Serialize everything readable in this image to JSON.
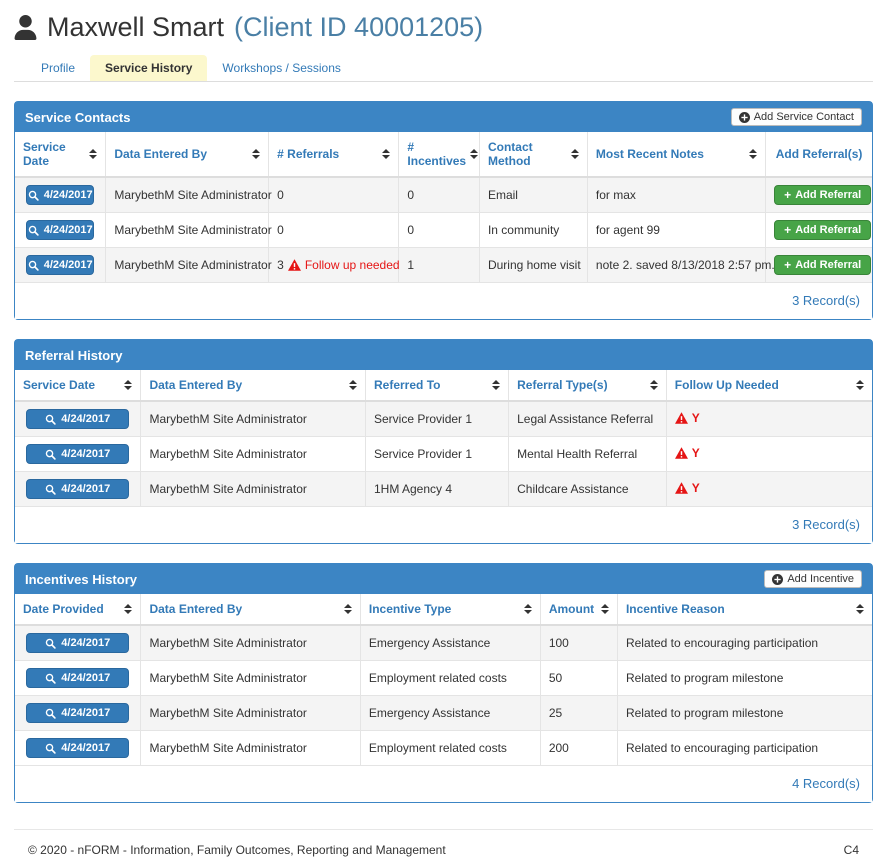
{
  "header": {
    "client_name": "Maxwell Smart",
    "client_id": "(Client ID 40001205)",
    "tabs": [
      {
        "label": "Profile",
        "active": false
      },
      {
        "label": "Service History",
        "active": true
      },
      {
        "label": "Workshops / Sessions",
        "active": false
      }
    ]
  },
  "colors": {
    "accent": "#3c85c4",
    "link": "#337ab7",
    "danger": "#e51515",
    "success": "#47a447",
    "tab_active_bg": "#fcf8cd",
    "stripe": "#f4f4f4",
    "border": "#dddddd",
    "text": "#333333"
  },
  "icons": {
    "title_icon": "user-icon",
    "date_button_icon": "search-icon",
    "warning_icon": "warning-triangle-icon",
    "add_button_icon": "plus-circle-icon"
  },
  "tables": [
    {
      "title": "Service Contacts",
      "header_button": "Add Service Contact",
      "columns": [
        {
          "label": "Service Date",
          "sortable": true
        },
        {
          "label": "Data Entered By",
          "sortable": true
        },
        {
          "label": "# Referrals",
          "sortable": true
        },
        {
          "label": "# Incentives",
          "sortable": true
        },
        {
          "label": "Contact Method",
          "sortable": true
        },
        {
          "label": "Most Recent Notes",
          "sortable": true
        },
        {
          "label": "Add Referral(s)",
          "sortable": false,
          "center": true
        }
      ],
      "rows": [
        [
          {
            "t": "date",
            "v": "4/24/2017"
          },
          {
            "t": "text",
            "v": "MarybethM Site Administrator"
          },
          {
            "t": "text",
            "v": "0"
          },
          {
            "t": "text",
            "v": "0"
          },
          {
            "t": "text",
            "v": "Email"
          },
          {
            "t": "text",
            "v": "for max"
          },
          {
            "t": "action",
            "v": "Add Referral"
          }
        ],
        [
          {
            "t": "date",
            "v": "4/24/2017"
          },
          {
            "t": "text",
            "v": "MarybethM Site Administrator"
          },
          {
            "t": "text",
            "v": "0"
          },
          {
            "t": "text",
            "v": "0"
          },
          {
            "t": "text",
            "v": "In community"
          },
          {
            "t": "text",
            "v": "for agent 99"
          },
          {
            "t": "action",
            "v": "Add Referral"
          }
        ],
        [
          {
            "t": "date",
            "v": "4/24/2017"
          },
          {
            "t": "text",
            "v": "MarybethM Site Administrator"
          },
          {
            "t": "warn",
            "v": "3",
            "label": "Follow up needed"
          },
          {
            "t": "text",
            "v": "1"
          },
          {
            "t": "text",
            "v": "During home visit"
          },
          {
            "t": "text",
            "v": "note 2. saved 8/13/2018 2:57 pm."
          },
          {
            "t": "action",
            "v": "Add Referral"
          }
        ]
      ],
      "record_count": "3 Record(s)"
    },
    {
      "title": "Referral History",
      "header_button": null,
      "columns": [
        {
          "label": "Service Date",
          "sortable": true
        },
        {
          "label": "Data Entered By",
          "sortable": true
        },
        {
          "label": "Referred To",
          "sortable": true
        },
        {
          "label": "Referral Type(s)",
          "sortable": true
        },
        {
          "label": "Follow Up Needed",
          "sortable": true
        }
      ],
      "rows": [
        [
          {
            "t": "date",
            "v": "4/24/2017"
          },
          {
            "t": "text",
            "v": "MarybethM Site Administrator"
          },
          {
            "t": "text",
            "v": "Service Provider 1"
          },
          {
            "t": "text",
            "v": "Legal Assistance Referral"
          },
          {
            "t": "flag",
            "v": "Y"
          }
        ],
        [
          {
            "t": "date",
            "v": "4/24/2017"
          },
          {
            "t": "text",
            "v": "MarybethM Site Administrator"
          },
          {
            "t": "text",
            "v": "Service Provider 1"
          },
          {
            "t": "text",
            "v": "Mental Health Referral"
          },
          {
            "t": "flag",
            "v": "Y"
          }
        ],
        [
          {
            "t": "date",
            "v": "4/24/2017"
          },
          {
            "t": "text",
            "v": "MarybethM Site Administrator"
          },
          {
            "t": "text",
            "v": "1HM Agency 4"
          },
          {
            "t": "text",
            "v": "Childcare Assistance"
          },
          {
            "t": "flag",
            "v": "Y"
          }
        ]
      ],
      "record_count": "3 Record(s)"
    },
    {
      "title": "Incentives History",
      "header_button": "Add Incentive",
      "columns": [
        {
          "label": "Date Provided",
          "sortable": true
        },
        {
          "label": "Data Entered By",
          "sortable": true
        },
        {
          "label": "Incentive Type",
          "sortable": true
        },
        {
          "label": "Amount",
          "sortable": true
        },
        {
          "label": "Incentive Reason",
          "sortable": true
        }
      ],
      "rows": [
        [
          {
            "t": "date",
            "v": "4/24/2017"
          },
          {
            "t": "text",
            "v": "MarybethM Site Administrator"
          },
          {
            "t": "text",
            "v": "Emergency Assistance"
          },
          {
            "t": "text",
            "v": "100"
          },
          {
            "t": "text",
            "v": "Related to encouraging participation"
          }
        ],
        [
          {
            "t": "date",
            "v": "4/24/2017"
          },
          {
            "t": "text",
            "v": "MarybethM Site Administrator"
          },
          {
            "t": "text",
            "v": "Employment related costs"
          },
          {
            "t": "text",
            "v": "50"
          },
          {
            "t": "text",
            "v": "Related to program milestone"
          }
        ],
        [
          {
            "t": "date",
            "v": "4/24/2017"
          },
          {
            "t": "text",
            "v": "MarybethM Site Administrator"
          },
          {
            "t": "text",
            "v": "Emergency Assistance"
          },
          {
            "t": "text",
            "v": "25"
          },
          {
            "t": "text",
            "v": "Related to program milestone"
          }
        ],
        [
          {
            "t": "date",
            "v": "4/24/2017"
          },
          {
            "t": "text",
            "v": "MarybethM Site Administrator"
          },
          {
            "t": "text",
            "v": "Employment related costs"
          },
          {
            "t": "text",
            "v": "200"
          },
          {
            "t": "text",
            "v": "Related to encouraging participation"
          }
        ]
      ],
      "record_count": "4 Record(s)"
    }
  ],
  "footer": {
    "copyright": "© 2020 - nFORM - Information, Family Outcomes, Reporting and Management",
    "code": "C4"
  }
}
